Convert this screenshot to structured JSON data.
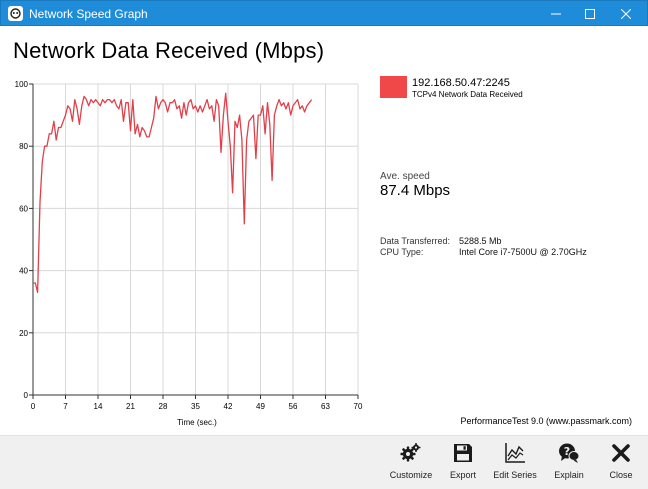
{
  "window": {
    "title": "Network Speed Graph",
    "minimize_icon": "minimize-icon",
    "maximize_icon": "maximize-icon",
    "close_icon": "close-icon"
  },
  "heading": "Network Data Received (Mbps)",
  "legend": {
    "color": "#f04848",
    "name": "192.168.50.47:2245",
    "subtitle": "TCPv4 Network Data Received"
  },
  "stats": {
    "ave_label": "Ave. speed",
    "ave_value": "87.4 Mbps",
    "rows": [
      {
        "key": "Data Transferred:",
        "value": "5288.5 Mb"
      },
      {
        "key": "CPU Type:",
        "value": "Intel Core i7-7500U @ 2.70GHz"
      }
    ]
  },
  "watermark": "PerformanceTest 9.0 (www.passmark.com)",
  "toolbar": {
    "buttons": [
      {
        "label": "Customize",
        "icon": "gears-icon"
      },
      {
        "label": "Export",
        "icon": "floppy-disk-icon"
      },
      {
        "label": "Edit Series",
        "icon": "line-chart-icon"
      },
      {
        "label": "Explain",
        "icon": "question-bubble-icon"
      },
      {
        "label": "Close",
        "icon": "close-x-icon"
      }
    ]
  },
  "chart_data": {
    "type": "line",
    "title": "Network Data Received (Mbps)",
    "xlabel": "Time (sec.)",
    "ylabel": "",
    "xlim": [
      0,
      70
    ],
    "ylim": [
      0,
      100
    ],
    "x_ticks": [
      0,
      7,
      14,
      21,
      28,
      35,
      42,
      49,
      56,
      63,
      70
    ],
    "y_ticks": [
      0,
      20,
      40,
      60,
      80,
      100
    ],
    "grid": true,
    "series": [
      {
        "name": "192.168.50.47:2245",
        "color": "#e0404a",
        "x": [
          0,
          0.5,
          1,
          1.5,
          2,
          2.5,
          3,
          3.5,
          4,
          4.5,
          5,
          5.5,
          6,
          6.5,
          7,
          7.5,
          8,
          8.5,
          9,
          9.5,
          10,
          10.5,
          11,
          11.5,
          12,
          12.5,
          13,
          13.5,
          14,
          14.5,
          15,
          15.5,
          16,
          16.5,
          17,
          17.5,
          18,
          18.5,
          19,
          19.5,
          20,
          20.5,
          21,
          21.5,
          22,
          22.5,
          23,
          23.5,
          24,
          24.5,
          25,
          25.5,
          26,
          26.5,
          27,
          27.5,
          28,
          28.5,
          29,
          29.5,
          30,
          30.5,
          31,
          31.5,
          32,
          32.5,
          33,
          33.5,
          34,
          34.5,
          35,
          35.5,
          36,
          36.5,
          37,
          37.5,
          38,
          38.5,
          39,
          39.5,
          40,
          40.5,
          41,
          41.5,
          42,
          42.5,
          43,
          43.5,
          44,
          44.5,
          45,
          45.5,
          46,
          46.5,
          47,
          47.5,
          48,
          48.5,
          49,
          49.5,
          50,
          50.5,
          51,
          51.5,
          52,
          52.5,
          53,
          53.5,
          54,
          54.5,
          55,
          55.5,
          56,
          56.5,
          57,
          57.5,
          58,
          58.5,
          59,
          59.5,
          60
        ],
        "values": [
          36,
          36,
          33,
          62,
          75,
          80,
          80,
          84,
          84,
          88,
          82,
          86,
          86,
          88,
          90,
          93,
          92,
          88,
          95,
          92,
          87,
          93,
          96,
          95,
          93,
          95,
          94,
          95,
          94,
          93,
          95,
          94,
          95,
          95,
          94,
          95,
          93,
          92,
          95,
          88,
          94,
          94,
          85,
          95,
          84,
          87,
          83,
          86,
          85,
          83,
          83,
          86,
          89,
          96,
          92,
          94,
          95,
          94,
          91,
          94,
          94,
          95,
          92,
          93,
          89,
          94,
          90,
          94,
          95,
          92,
          93,
          91,
          93,
          91,
          93,
          95,
          92,
          93,
          88,
          95,
          93,
          78,
          90,
          97,
          88,
          80,
          65,
          88,
          86,
          90,
          82,
          55,
          82,
          88,
          89,
          90,
          76,
          90,
          90,
          93,
          84,
          94,
          87,
          69,
          90,
          93,
          95,
          93,
          94,
          92,
          94,
          90,
          93,
          94,
          95,
          92,
          93,
          91,
          93,
          94,
          95
        ],
        "values_note": ""
      }
    ]
  }
}
